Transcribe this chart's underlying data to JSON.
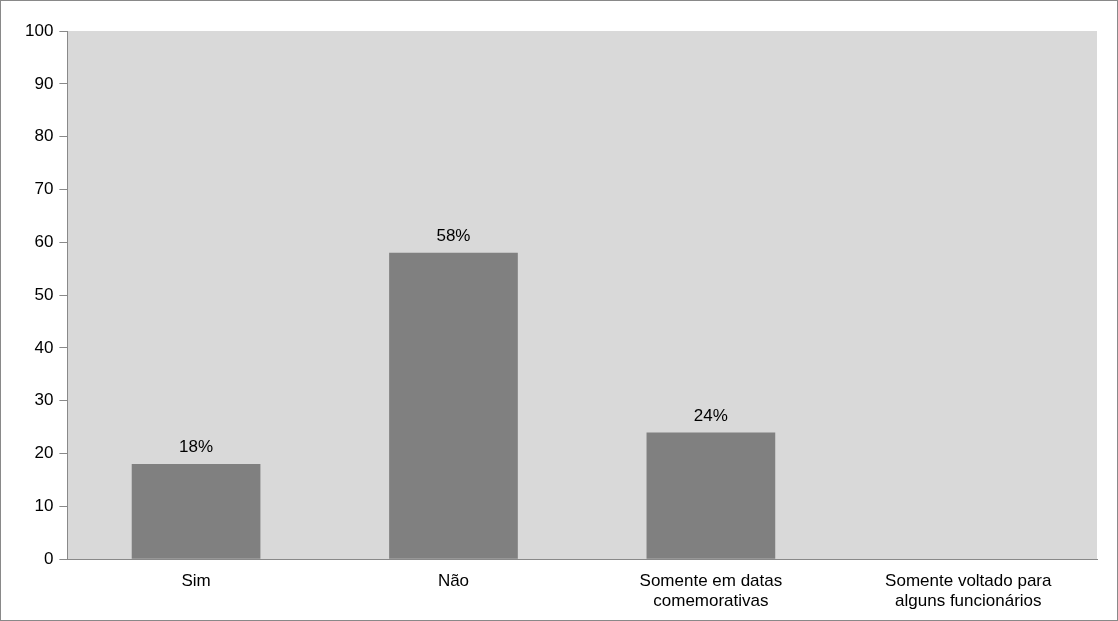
{
  "chart_data": {
    "type": "bar",
    "categories": [
      "Sim",
      "Não",
      "Somente em datas comemorativas",
      "Somente voltado para alguns funcionários"
    ],
    "values": [
      18,
      58,
      24,
      0
    ],
    "value_labels": [
      "18%",
      "58%",
      "24%",
      null
    ],
    "color": "#808080",
    "ylim": [
      0,
      100
    ],
    "yticks": [
      0,
      10,
      20,
      30,
      40,
      50,
      60,
      70,
      80,
      90,
      100
    ],
    "grid": false,
    "legend": false
  }
}
